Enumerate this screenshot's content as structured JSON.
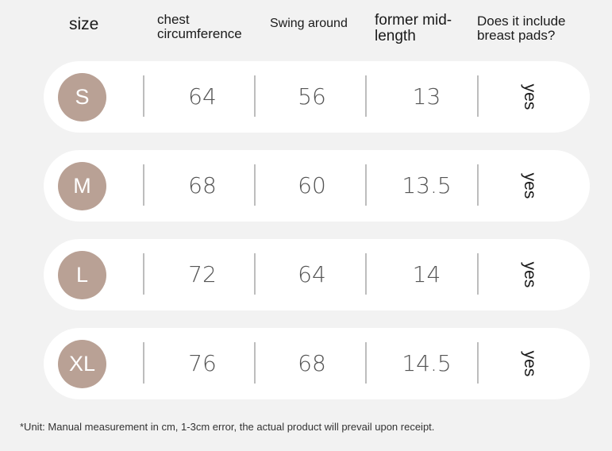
{
  "header": {
    "size": "size",
    "chest": "chest circumference",
    "swing": "Swing around",
    "former": "former mid-length",
    "pads": "Does it include breast pads?"
  },
  "rows": [
    {
      "size": "S",
      "chest": "64",
      "swing": "56",
      "former": "13",
      "pads": "yes"
    },
    {
      "size": "M",
      "chest": "68",
      "swing": "60",
      "former": "13.5",
      "pads": "yes"
    },
    {
      "size": "L",
      "chest": "72",
      "swing": "64",
      "former": "14",
      "pads": "yes"
    },
    {
      "size": "XL",
      "chest": "76",
      "swing": "68",
      "former": "14.5",
      "pads": "yes"
    }
  ],
  "footnote": "*Unit: Manual measurement in cm, 1-3cm error, the actual product will prevail upon receipt.",
  "colors": {
    "background": "#f2f2f2",
    "row": "#ffffff",
    "badge": "#b9a195",
    "divider": "#bdbdbd"
  }
}
